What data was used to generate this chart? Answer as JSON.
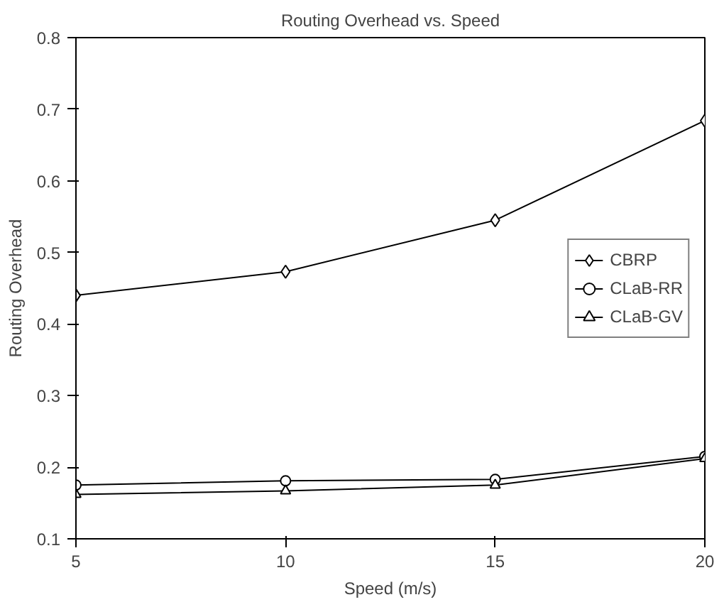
{
  "chart_data": {
    "type": "line",
    "title": "Routing Overhead vs. Speed",
    "xlabel": "Speed (m/s)",
    "ylabel": "Routing Overhead",
    "x": [
      5,
      10,
      15,
      20
    ],
    "xlim": [
      5,
      20
    ],
    "xticks": [
      5,
      10,
      15,
      20
    ],
    "ylim": [
      0.1,
      0.8
    ],
    "yticks": [
      0.1,
      0.2,
      0.3,
      0.4,
      0.5,
      0.6,
      0.7,
      0.8
    ],
    "grid": false,
    "legend": "right",
    "line_style": "solid",
    "series": [
      {
        "name": "CBRP",
        "color": "#000000",
        "marker": "diamond",
        "values": [
          0.44,
          0.473,
          0.545,
          0.684
        ]
      },
      {
        "name": "CLaB-RR",
        "color": "#000000",
        "marker": "circle",
        "values": [
          0.175,
          0.181,
          0.183,
          0.215
        ]
      },
      {
        "name": "CLaB-GV",
        "color": "#000000",
        "marker": "triangle",
        "values": [
          0.162,
          0.167,
          0.175,
          0.212
        ]
      }
    ]
  }
}
